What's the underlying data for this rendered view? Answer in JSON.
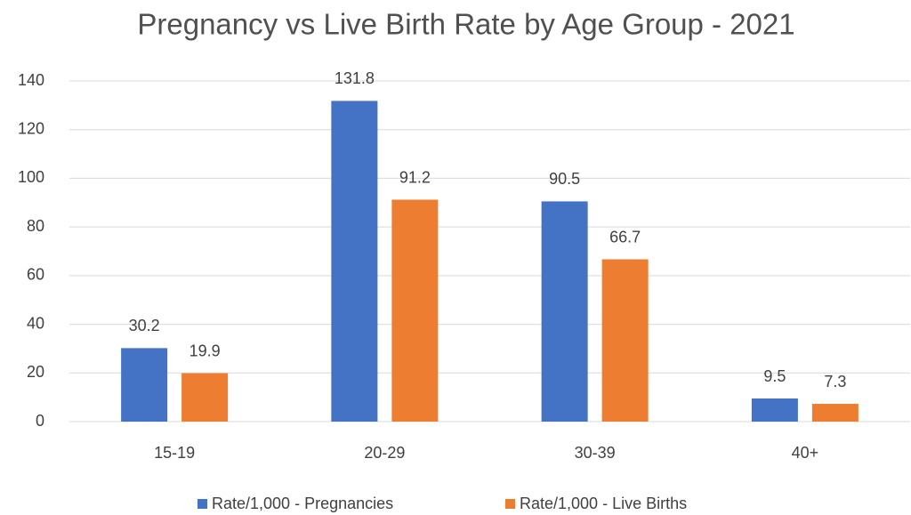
{
  "chart_data": {
    "type": "bar",
    "title": "Pregnancy vs Live Birth Rate by Age Group - 2021",
    "categories": [
      "15-19",
      "20-29",
      "30-39",
      "40+"
    ],
    "series": [
      {
        "name": "Rate/1,000 - Pregnancies",
        "color": "#4472c4",
        "values": [
          30.2,
          131.8,
          90.5,
          9.5
        ]
      },
      {
        "name": "Rate/1,000 - Live Births",
        "color": "#ed7d31",
        "values": [
          19.9,
          91.2,
          66.7,
          7.3
        ]
      }
    ],
    "ylim": [
      0,
      140
    ],
    "yticks": [
      0,
      20,
      40,
      60,
      80,
      100,
      120,
      140
    ],
    "grid": true,
    "legend": "bottom"
  }
}
